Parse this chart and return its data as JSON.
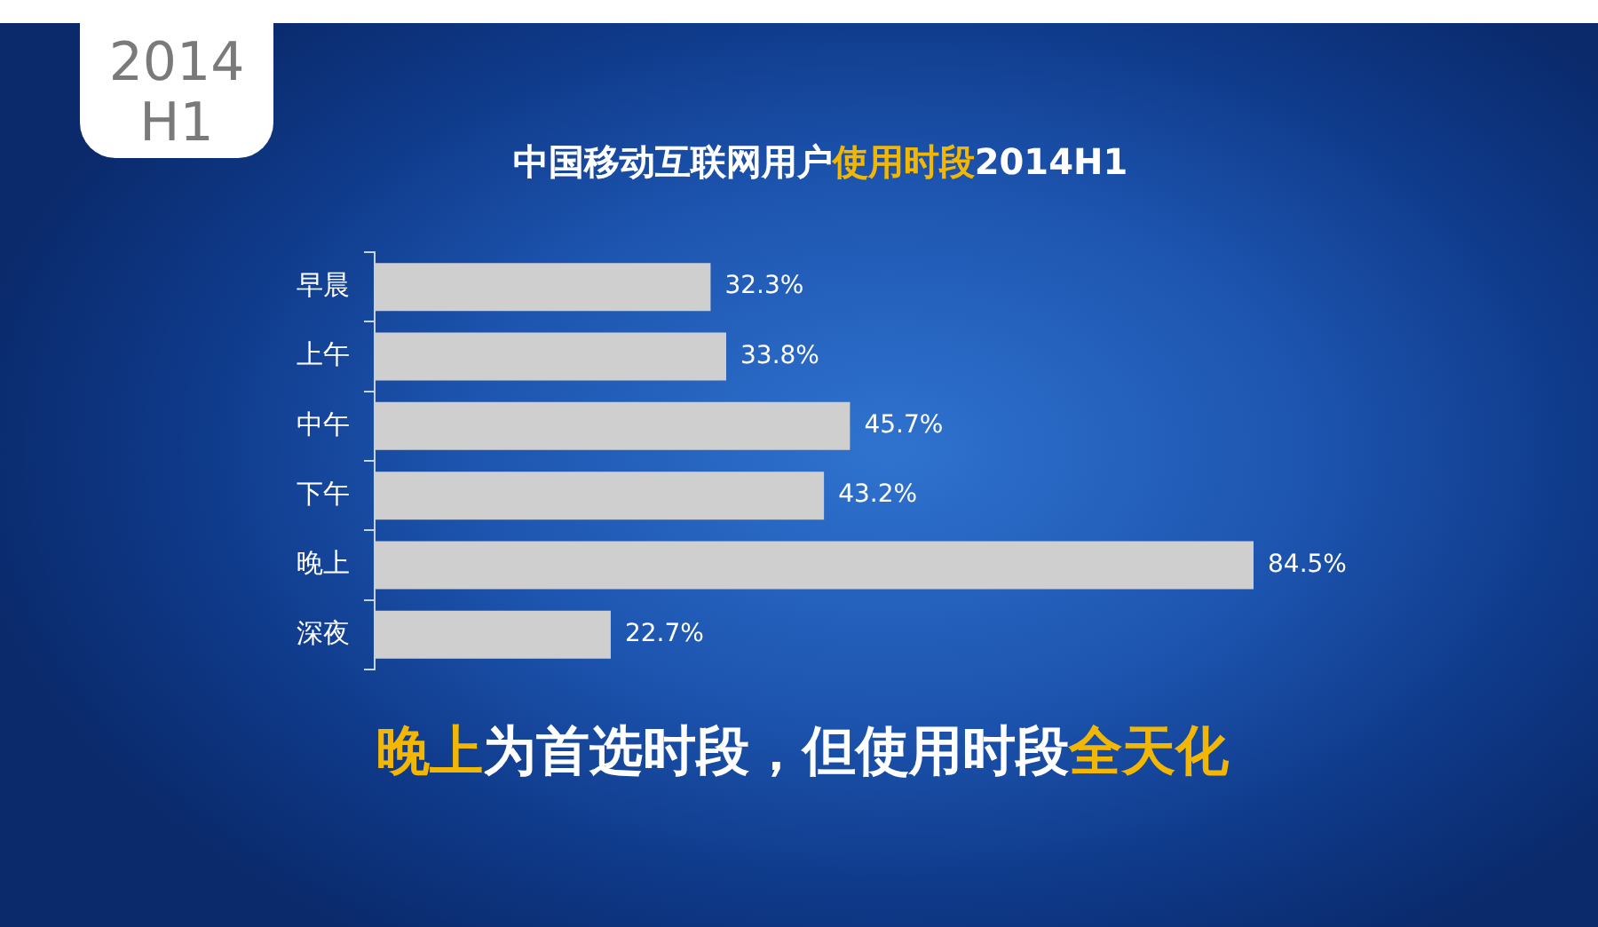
{
  "chart_data": {
    "type": "bar",
    "orientation": "horizontal",
    "title": "中国移动互联网用户使用时段2014H1",
    "categories": [
      "早晨",
      "上午",
      "中午",
      "下午",
      "晚上",
      "深夜"
    ],
    "values": [
      32.3,
      33.8,
      45.7,
      43.2,
      84.5,
      22.7
    ],
    "color": "#cfcfcf",
    "value_labels": [
      "32.3%",
      "33.8%",
      "45.7%",
      "43.2%",
      "84.5%",
      "22.7%"
    ],
    "tick_labels": "y",
    "annotations": [
      "2014 H1",
      "晚上为首选时段，但使用时段全天化"
    ]
  }
}
